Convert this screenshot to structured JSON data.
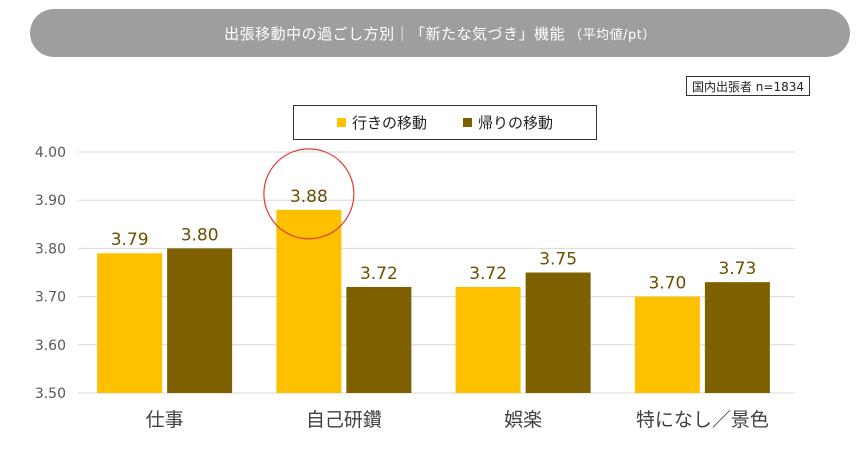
{
  "header": {
    "title": "出張移動中の過ごし方別｜「新たな気づき」機能",
    "subtitle": "（平均値/pt）"
  },
  "sample_note": "国内出張者 n=1834",
  "colors": {
    "outbound": "#FFC000",
    "return": "#7F6000",
    "label_text": "#6B4E00",
    "highlight_circle": "#E53935",
    "grid": "#D9D9D9",
    "title_bg": "#9E9E9E"
  },
  "chart_data": {
    "type": "bar",
    "title": "出張移動中の過ごし方別｜「新たな気づき」機能（平均値/pt）",
    "categories": [
      "仕事",
      "自己研鑽",
      "娯楽",
      "特になし／景色"
    ],
    "series": [
      {
        "name": "行きの移動",
        "values": [
          3.79,
          3.88,
          3.72,
          3.7
        ]
      },
      {
        "name": "帰りの移動",
        "values": [
          3.8,
          3.72,
          3.75,
          3.73
        ]
      }
    ],
    "data_labels": [
      [
        "3.79",
        "3.88",
        "3.72",
        "3.70"
      ],
      [
        "3.80",
        "3.72",
        "3.75",
        "3.73"
      ]
    ],
    "ylim": [
      3.5,
      4.0
    ],
    "yticks": [
      "3.50",
      "3.60",
      "3.70",
      "3.80",
      "3.90",
      "4.00"
    ],
    "grid": true,
    "legend_position": "top-center",
    "highlight": {
      "series": 0,
      "category": 1
    }
  }
}
